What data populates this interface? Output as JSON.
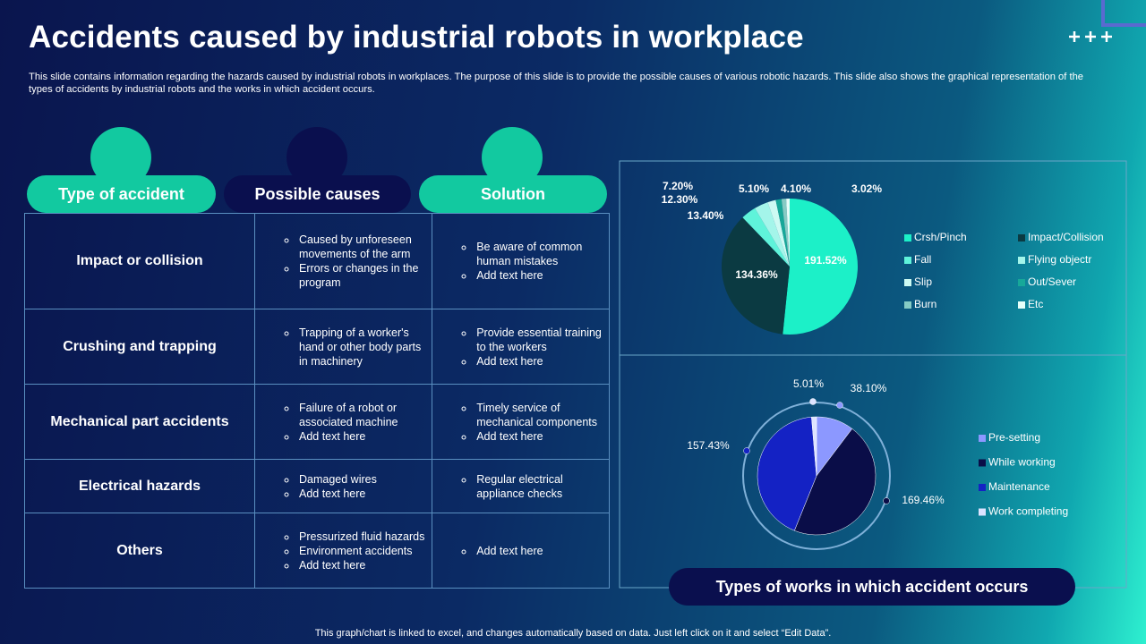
{
  "header": {
    "title": "Accidents caused by industrial robots in workplace",
    "description": "This slide contains information regarding the hazards caused by industrial robots in workplaces. The purpose of this slide is to provide the possible causes of various robotic hazards. This slide also shows the graphical representation of the types of accidents by industrial robots and the works in which accident occurs."
  },
  "table": {
    "headers": [
      "Type of accident",
      "Possible causes",
      "Solution"
    ],
    "rows": [
      {
        "type": "Impact or collision",
        "causes": [
          "Caused by unforeseen movements of the arm",
          "Errors or changes in the program"
        ],
        "solution": [
          "Be aware of common human mistakes",
          "Add text here"
        ]
      },
      {
        "type": "Crushing and trapping",
        "causes": [
          "Trapping of a worker's hand or other body parts in machinery"
        ],
        "solution": [
          "Provide essential training to the workers",
          "Add text here"
        ]
      },
      {
        "type": "Mechanical part accidents",
        "causes": [
          "Failure of a robot or associated machine",
          "Add text here"
        ],
        "solution": [
          "Timely service of mechanical components",
          "Add text here"
        ]
      },
      {
        "type": "Electrical hazards",
        "causes": [
          "Damaged wires",
          "Add text here"
        ],
        "solution": [
          "Regular electrical appliance checks"
        ]
      },
      {
        "type": "Others",
        "causes": [
          "Pressurized fluid hazards",
          "Environment accidents",
          "Add text here"
        ],
        "solution": [
          "Add text here"
        ]
      }
    ]
  },
  "chart_data": [
    {
      "type": "pie",
      "categories": [
        "Crsh/Pinch",
        "Impact/Collision",
        "Fall",
        "Flying objectr",
        "Slip",
        "Out/Sever",
        "Burn",
        "Etc"
      ],
      "values": [
        191.52,
        134.36,
        13.4,
        12.3,
        7.2,
        5.1,
        4.1,
        3.02
      ],
      "value_labels": [
        "191.52%",
        "134.36%",
        "13.40%",
        "12.30%",
        "7.20%",
        "5.10%",
        "4.10%",
        "3.02%"
      ],
      "colors": [
        "#1cf0c8",
        "#0b3a42",
        "#5ff3da",
        "#a4f5ea",
        "#cdfaf3",
        "#17a899",
        "#86cbc4",
        "#e6fffa"
      ]
    },
    {
      "type": "pie",
      "categories": [
        "Pre-setting",
        "While working",
        "Maintenance",
        "Work completing"
      ],
      "values": [
        38.1,
        169.46,
        157.43,
        5.01
      ],
      "value_labels": [
        "38.10%",
        "169.46%",
        "157.43%",
        "5.01%"
      ],
      "colors": [
        "#8c98ff",
        "#0a0d48",
        "#1422c4",
        "#dde3ff"
      ]
    }
  ],
  "chart_caption": "Types of works in which accident occurs",
  "footer": "This graph/chart is linked to excel, and changes automatically based on data. Just left click on it and select “Edit Data”."
}
